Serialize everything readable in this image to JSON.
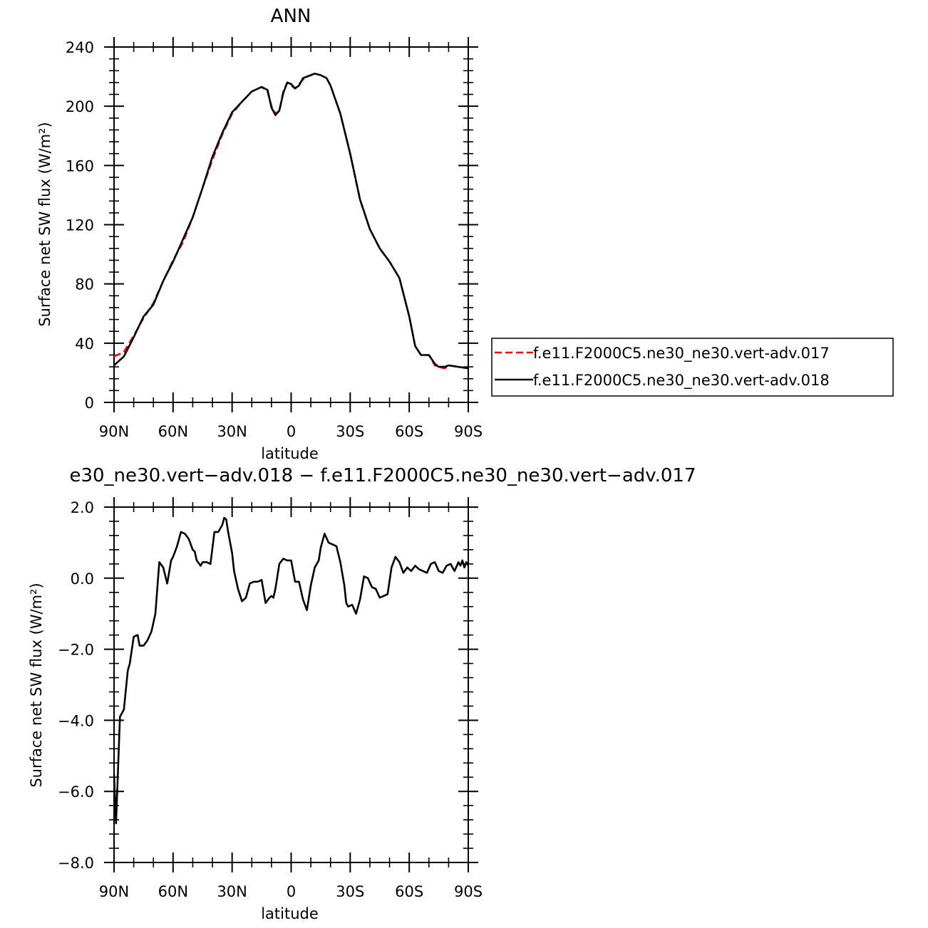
{
  "chart_data": [
    {
      "type": "line",
      "title": "ANN",
      "xlabel": "latitude",
      "ylabel": "Surface net SW flux (W/m²)",
      "xlim": [
        90,
        -90
      ],
      "ylim": [
        0,
        240
      ],
      "x_ticks": [
        {
          "value": 90,
          "label": "90N"
        },
        {
          "value": 60,
          "label": "60N"
        },
        {
          "value": 30,
          "label": "30N"
        },
        {
          "value": 0,
          "label": "0"
        },
        {
          "value": -30,
          "label": "30S"
        },
        {
          "value": -60,
          "label": "60S"
        },
        {
          "value": -90,
          "label": "90S"
        }
      ],
      "y_ticks": [
        {
          "value": 0,
          "label": "0"
        },
        {
          "value": 40,
          "label": "40"
        },
        {
          "value": 80,
          "label": "80"
        },
        {
          "value": 120,
          "label": "120"
        },
        {
          "value": 160,
          "label": "160"
        },
        {
          "value": 200,
          "label": "200"
        },
        {
          "value": 240,
          "label": "240"
        }
      ],
      "grid": false,
      "legend": "right",
      "series": [
        {
          "name": "f.e11.F2000C5.ne30_ne30.vert-adv.017",
          "color": "#ff0000",
          "dash": "dashed",
          "x": [
            90,
            85,
            80,
            75,
            70,
            65,
            60,
            55,
            50,
            45,
            40,
            35,
            30,
            25,
            20,
            15,
            12,
            10,
            8,
            6,
            4,
            2,
            0,
            -2,
            -4,
            -6,
            -8,
            -10,
            -12,
            -15,
            -18,
            -20,
            -25,
            -30,
            -35,
            -40,
            -45,
            -50,
            -55,
            -60,
            -63,
            -66,
            -70,
            -73,
            -75,
            -78,
            -80,
            -85,
            -90
          ],
          "y": [
            31,
            34,
            45,
            57,
            67,
            82,
            96,
            108,
            125,
            145,
            164,
            181,
            195,
            203,
            210,
            213,
            210,
            200,
            195,
            197,
            210,
            216,
            214,
            212,
            215,
            218,
            220,
            221,
            222,
            221,
            219,
            214,
            195,
            168,
            137,
            117,
            104,
            95,
            84,
            58,
            38,
            32,
            32,
            25,
            24,
            23,
            25,
            24,
            23
          ]
        },
        {
          "name": "f.e11.F2000C5.ne30_ne30.vert-adv.018",
          "color": "#000000",
          "dash": "solid",
          "x": [
            90,
            85,
            80,
            75,
            70,
            65,
            60,
            55,
            50,
            45,
            40,
            35,
            30,
            25,
            20,
            15,
            12,
            10,
            8,
            6,
            4,
            2,
            0,
            -2,
            -4,
            -6,
            -8,
            -10,
            -12,
            -15,
            -18,
            -20,
            -25,
            -30,
            -35,
            -40,
            -45,
            -50,
            -55,
            -60,
            -63,
            -66,
            -70,
            -73,
            -75,
            -78,
            -80,
            -85,
            -90
          ],
          "y": [
            25,
            31,
            44,
            58,
            66,
            82,
            95,
            110,
            125,
            145,
            166,
            182,
            196,
            203,
            210,
            213,
            211,
            199,
            194,
            197,
            209,
            216,
            215,
            212,
            214,
            219,
            220,
            221,
            222,
            221,
            219,
            214,
            195,
            168,
            137,
            117,
            104,
            95,
            84,
            58,
            38,
            32,
            32,
            26,
            24,
            24,
            25,
            24,
            23
          ]
        }
      ]
    },
    {
      "type": "line",
      "title": "e30_ne30.vert−adv.018 − f.e11.F2000C5.ne30_ne30.vert−adv.017",
      "xlabel": "latitude",
      "ylabel": "Surface net SW flux (W/m²)",
      "xlim": [
        90,
        -90
      ],
      "ylim": [
        -8,
        2
      ],
      "x_ticks": [
        {
          "value": 90,
          "label": "90N"
        },
        {
          "value": 60,
          "label": "60N"
        },
        {
          "value": 30,
          "label": "30N"
        },
        {
          "value": 0,
          "label": "0"
        },
        {
          "value": -30,
          "label": "30S"
        },
        {
          "value": -60,
          "label": "60S"
        },
        {
          "value": -90,
          "label": "90S"
        }
      ],
      "y_ticks": [
        {
          "value": -8,
          "label": "−8.0"
        },
        {
          "value": -6,
          "label": "−6.0"
        },
        {
          "value": -4,
          "label": "−4.0"
        },
        {
          "value": -2,
          "label": "−2.0"
        },
        {
          "value": 0,
          "label": "0.0"
        },
        {
          "value": 2,
          "label": "2.0"
        }
      ],
      "grid": false,
      "series": [
        {
          "color": "#000000",
          "dash": "solid",
          "x": [
            90,
            89,
            87,
            85,
            83,
            82,
            80,
            78,
            77,
            75,
            73,
            71,
            69,
            67,
            65,
            63,
            61,
            60,
            58,
            56,
            54,
            52,
            50,
            49,
            48,
            46,
            45,
            43,
            41,
            39,
            37,
            35,
            34,
            33,
            32,
            30,
            29,
            27,
            25,
            23,
            21,
            19,
            17,
            15,
            13,
            11,
            10,
            9,
            8,
            6,
            4,
            2,
            0,
            -2,
            -4,
            -6,
            -8,
            -10,
            -12,
            -14,
            -15,
            -17,
            -19,
            -21,
            -23,
            -25,
            -27,
            -28,
            -29,
            -31,
            -33,
            -35,
            -37,
            -39,
            -41,
            -43,
            -45,
            -47,
            -49,
            -51,
            -53,
            -55,
            -57,
            -59,
            -61,
            -63,
            -65,
            -67,
            -69,
            -71,
            -73,
            -75,
            -77,
            -79,
            -81,
            -83,
            -85,
            -86,
            -87,
            -88,
            -89,
            -90
          ],
          "y": [
            -5.5,
            -6.9,
            -3.9,
            -3.7,
            -2.6,
            -2.4,
            -1.65,
            -1.6,
            -1.9,
            -1.9,
            -1.75,
            -1.5,
            -1.0,
            0.45,
            0.3,
            -0.15,
            0.5,
            0.6,
            0.9,
            1.3,
            1.25,
            1.1,
            0.8,
            0.75,
            0.5,
            0.35,
            0.45,
            0.45,
            0.4,
            1.3,
            1.3,
            1.5,
            1.7,
            1.65,
            1.3,
            0.7,
            0.2,
            -0.3,
            -0.65,
            -0.55,
            -0.15,
            -0.1,
            -0.1,
            -0.05,
            -0.7,
            -0.55,
            -0.5,
            -0.55,
            -0.3,
            0.4,
            0.55,
            0.5,
            0.5,
            -0.1,
            -0.1,
            -0.6,
            -0.9,
            -0.2,
            0.3,
            0.5,
            0.85,
            1.25,
            1.0,
            0.95,
            0.9,
            0.45,
            -0.2,
            -0.7,
            -0.8,
            -0.75,
            -1.0,
            -0.6,
            0.05,
            0.0,
            -0.25,
            -0.3,
            -0.55,
            -0.5,
            -0.45,
            0.3,
            0.6,
            0.45,
            0.15,
            0.3,
            0.2,
            0.35,
            0.25,
            0.2,
            0.15,
            0.4,
            0.45,
            0.2,
            0.15,
            0.35,
            0.4,
            0.2,
            0.45,
            0.35,
            0.5,
            0.3,
            0.45,
            0.35
          ]
        }
      ]
    }
  ]
}
